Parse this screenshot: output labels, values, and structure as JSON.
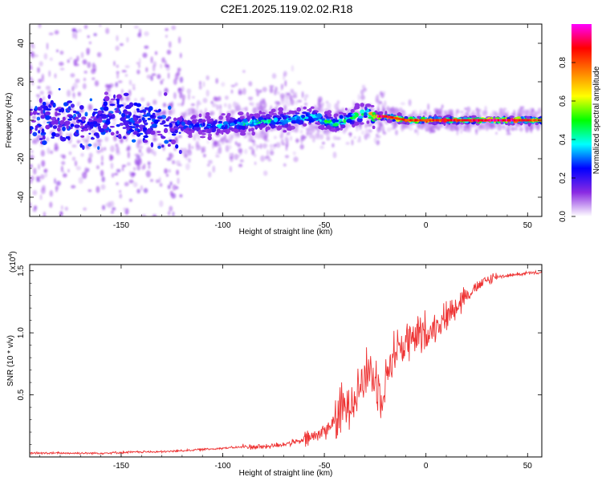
{
  "title": "C2E1.2025.119.02.02.R18",
  "colors": {
    "snr_line": "#ee3333",
    "axis": "#000000",
    "background": "#ffffff"
  },
  "chart_data": [
    {
      "type": "heatmap",
      "name": "spectrogram",
      "xlabel": "Height of straight line (km)",
      "ylabel": "Frequency (Hz)",
      "xlim": [
        -195,
        57
      ],
      "ylim": [
        -50,
        50
      ],
      "xticks": [
        -150,
        -100,
        -50,
        0,
        50
      ],
      "yticks": [
        -40,
        -20,
        0,
        20,
        40
      ],
      "colorbar": {
        "label": "Normalized spectral amplitude",
        "range": [
          0,
          1
        ],
        "ticks": [
          0.0,
          0.2,
          0.4,
          0.6,
          0.8
        ],
        "tick_labels": [
          "0.0",
          "0.2",
          "0.4",
          "0.6",
          "0.8"
        ],
        "colormap": [
          "#ffffff",
          "#8a2be2",
          "#0000ff",
          "#00ffff",
          "#00ff00",
          "#ffff00",
          "#ff8000",
          "#ff0000",
          "#ff00ff"
        ]
      },
      "ridge": {
        "x": [
          -195,
          -170,
          -150,
          -130,
          -115,
          -100,
          -85,
          -70,
          -55,
          -45,
          -30,
          -24,
          -20,
          -10,
          0,
          10,
          20,
          30,
          40,
          50,
          57
        ],
        "freq": [
          0,
          0,
          0,
          -2,
          -3,
          -3,
          -1,
          0,
          2,
          -2,
          4,
          2,
          2,
          0,
          0,
          0,
          0,
          0,
          0,
          0,
          0
        ],
        "amplitude": [
          0.2,
          0.2,
          0.25,
          0.3,
          0.35,
          0.4,
          0.45,
          0.45,
          0.45,
          0.5,
          0.55,
          0.95,
          0.9,
          0.85,
          0.85,
          0.9,
          0.9,
          0.95,
          0.95,
          0.85,
          0.7
        ]
      }
    },
    {
      "type": "line",
      "name": "snr",
      "xlabel": "Height of straight line (km)",
      "ylabel": "SNR (10 * v/v)",
      "scale_note": "(x10",
      "scale_exp": "4",
      "scale_close": ")",
      "xlim": [
        -195,
        57
      ],
      "ylim": [
        0,
        1.55
      ],
      "xticks": [
        -150,
        -100,
        -50,
        0,
        50
      ],
      "yticks": [
        0.5,
        1.0,
        1.5
      ],
      "ytick_labels": [
        "0.5",
        "1.0",
        "1.5"
      ],
      "series": [
        {
          "x": [
            -195,
            -180,
            -160,
            -140,
            -130,
            -120,
            -110,
            -100,
            -90,
            -80,
            -70,
            -60,
            -55,
            -50,
            -45,
            -40,
            -35,
            -30,
            -28,
            -25,
            -22,
            -20,
            -18,
            -15,
            -10,
            -5,
            0,
            5,
            10,
            15,
            20,
            25,
            30,
            35,
            40,
            45,
            50,
            57
          ],
          "y": [
            0.03,
            0.03,
            0.03,
            0.04,
            0.04,
            0.05,
            0.06,
            0.07,
            0.08,
            0.08,
            0.1,
            0.13,
            0.16,
            0.2,
            0.28,
            0.38,
            0.5,
            0.62,
            0.68,
            0.6,
            0.52,
            0.58,
            0.72,
            0.85,
            0.9,
            0.95,
            0.98,
            1.05,
            1.12,
            1.22,
            1.3,
            1.36,
            1.42,
            1.45,
            1.46,
            1.47,
            1.48,
            1.48
          ]
        }
      ]
    }
  ]
}
